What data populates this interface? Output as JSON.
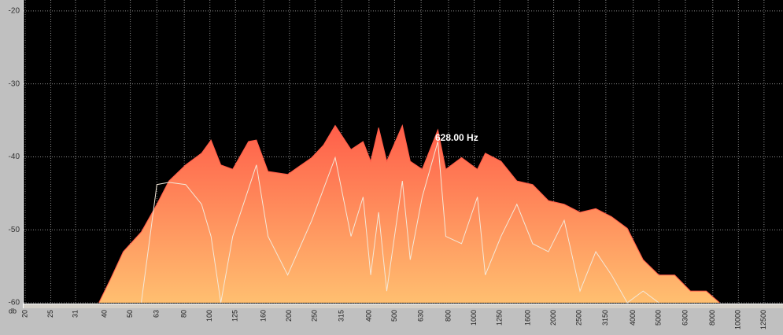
{
  "chart_data": {
    "type": "area",
    "ylabel": "db",
    "annotation": "628.00 Hz",
    "log_x": true,
    "grid": true,
    "xlim": [
      20,
      14750
    ],
    "xticks": [
      20,
      25,
      31,
      40,
      50,
      63,
      80,
      100,
      125,
      160,
      200,
      250,
      315,
      400,
      500,
      630,
      800,
      1000,
      1250,
      1600,
      2000,
      2500,
      3150,
      4000,
      5000,
      6300,
      8000,
      10000,
      12500
    ],
    "ylim": [
      -60,
      -18.5
    ],
    "yticks": [
      -20,
      -30,
      -40,
      -50,
      -60
    ],
    "series": [
      {
        "color": "#ff5a48",
        "color_bottom": "#ffbf70",
        "x": [
          38,
          42,
          47,
          55,
          63,
          70,
          81,
          93,
          101,
          110,
          122,
          140,
          150,
          166,
          197,
          243,
          269,
          298,
          342,
          380,
          406,
          435,
          467,
          535,
          573,
          636,
          729,
          781,
          896,
          1029,
          1102,
          1264,
          1451,
          1665,
          1910,
          2192,
          2515,
          2886,
          3311,
          3798,
          4360,
          5000,
          5740,
          6586,
          7560,
          8496
        ],
        "values": [
          -60,
          -56.8,
          -53.0,
          -50.3,
          -46.5,
          -43.3,
          -41.1,
          -39.5,
          -37.7,
          -41.1,
          -41.7,
          -37.9,
          -37.7,
          -42.0,
          -42.4,
          -40.1,
          -38.4,
          -35.7,
          -39.0,
          -37.9,
          -40.6,
          -36.0,
          -40.6,
          -35.7,
          -40.6,
          -41.7,
          -36.3,
          -41.7,
          -40.1,
          -41.7,
          -39.5,
          -40.6,
          -43.3,
          -43.8,
          -46.0,
          -46.5,
          -47.6,
          -47.1,
          -48.2,
          -49.8,
          -54.1,
          -56.2,
          -56.2,
          -58.4,
          -58.4,
          -60
        ]
      },
      {
        "type": "line",
        "color": "#f4e8d8",
        "x": [
          55,
          63,
          70,
          81,
          93,
          101,
          110,
          122,
          140,
          150,
          166,
          197,
          243,
          298,
          342,
          380,
          406,
          435,
          467,
          535,
          573,
          636,
          729,
          781,
          896,
          1029,
          1102,
          1264,
          1451,
          1665,
          1910,
          2192,
          2515,
          2886,
          3311,
          3798,
          4360,
          5000
        ],
        "values": [
          -60,
          -43.8,
          -43.5,
          -43.8,
          -46.5,
          -50.9,
          -60,
          -50.9,
          -44.4,
          -41.1,
          -50.9,
          -56.2,
          -48.7,
          -40.1,
          -50.9,
          -45.5,
          -56.2,
          -47.6,
          -58.4,
          -43.3,
          -54.1,
          -45.5,
          -37.9,
          -50.9,
          -51.9,
          -45.5,
          -56.2,
          -50.9,
          -46.5,
          -51.9,
          -53.0,
          -48.7,
          -58.4,
          -53.0,
          -56.2,
          -60,
          -58.4,
          -60
        ]
      }
    ]
  }
}
